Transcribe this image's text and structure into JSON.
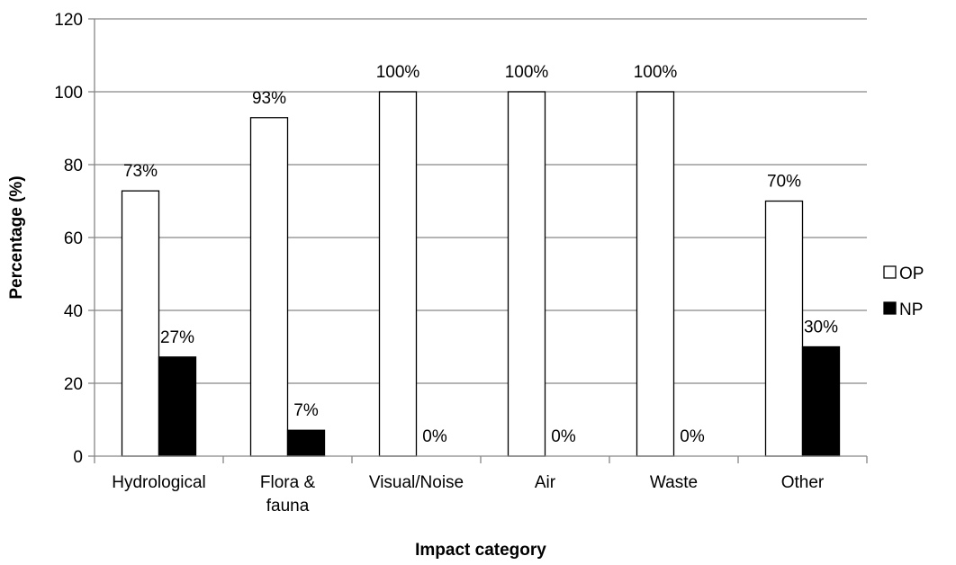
{
  "chart_data": {
    "type": "bar",
    "categories": [
      [
        "Hydrological"
      ],
      [
        "Flora &",
        "fauna"
      ],
      [
        "Visual/Noise"
      ],
      [
        "Air"
      ],
      [
        "Waste"
      ],
      [
        "Other"
      ]
    ],
    "series": [
      {
        "name": "OP",
        "color": "#ffffff",
        "values": [
          72.8,
          92.9,
          100,
          100,
          100,
          70
        ],
        "labels": [
          "73%",
          "93%",
          "100%",
          "100%",
          "100%",
          "70%"
        ]
      },
      {
        "name": "NP",
        "color": "#000000",
        "values": [
          27.2,
          7.1,
          0,
          0,
          0,
          30
        ],
        "labels": [
          "27%",
          "7%",
          "0%",
          "0%",
          "0%",
          "30%"
        ]
      }
    ],
    "title": "",
    "xlabel": "Impact category",
    "ylabel": "Percentage (%)",
    "ylim": [
      0,
      120
    ],
    "yticks": [
      0,
      20,
      40,
      60,
      80,
      100,
      120
    ],
    "grid": true,
    "legend": "right"
  }
}
